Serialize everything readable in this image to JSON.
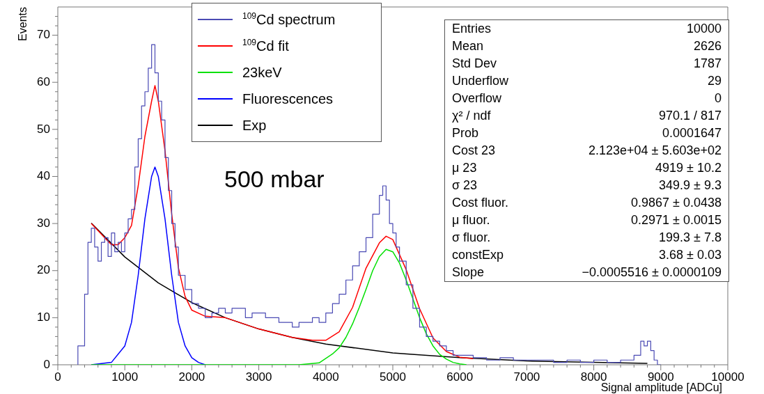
{
  "chart_data": {
    "type": "line",
    "xlabel": "Signal amplitude [ADCu]",
    "ylabel": "Events",
    "xlim": [
      0,
      10000
    ],
    "xticks": [
      0,
      {
        "value": 200,
        "label": null
      },
      {
        "value": 400,
        "label": null
      },
      {
        "value": 600,
        "label": null
      },
      {
        "value": 800,
        "label": null
      },
      1000,
      {
        "value": 1200,
        "label": null
      },
      {
        "value": 1400,
        "label": null
      },
      {
        "value": 1600,
        "label": null
      },
      {
        "value": 1800,
        "label": null
      },
      2000,
      {
        "value": 2200,
        "label": null
      },
      {
        "value": 2400,
        "label": null
      },
      {
        "value": 2600,
        "label": null
      },
      {
        "value": 2800,
        "label": null
      },
      3000,
      {
        "value": 3200,
        "label": null
      },
      {
        "value": 3400,
        "label": null
      },
      {
        "value": 3600,
        "label": null
      },
      {
        "value": 3800,
        "label": null
      },
      4000,
      {
        "value": 4200,
        "label": null
      },
      {
        "value": 4400,
        "label": null
      },
      {
        "value": 4600,
        "label": null
      },
      {
        "value": 4800,
        "label": null
      },
      5000,
      {
        "value": 5200,
        "label": null
      },
      {
        "value": 5400,
        "label": null
      },
      {
        "value": 5600,
        "label": null
      },
      {
        "value": 5800,
        "label": null
      },
      6000,
      {
        "value": 6200,
        "label": null
      },
      {
        "value": 6400,
        "label": null
      },
      {
        "value": 6600,
        "label": null
      },
      {
        "value": 6800,
        "label": null
      },
      7000,
      {
        "value": 7200,
        "label": null
      },
      {
        "value": 7400,
        "label": null
      },
      {
        "value": 7600,
        "label": null
      },
      {
        "value": 7800,
        "label": null
      },
      8000,
      {
        "value": 8200,
        "label": null
      },
      {
        "value": 8400,
        "label": null
      },
      {
        "value": 8600,
        "label": null
      },
      {
        "value": 8800,
        "label": null
      },
      9000,
      {
        "value": 9200,
        "label": null
      },
      {
        "value": 9400,
        "label": null
      },
      {
        "value": 9600,
        "label": null
      },
      {
        "value": 9800,
        "label": null
      },
      10000
    ],
    "ylim": [
      0,
      76
    ],
    "yticks": [
      0,
      {
        "value": 2,
        "label": null
      },
      {
        "value": 4,
        "label": null
      },
      {
        "value": 6,
        "label": null
      },
      {
        "value": 8,
        "label": null
      },
      10,
      {
        "value": 12,
        "label": null
      },
      {
        "value": 14,
        "label": null
      },
      {
        "value": 16,
        "label": null
      },
      {
        "value": 18,
        "label": null
      },
      20,
      {
        "value": 22,
        "label": null
      },
      {
        "value": 24,
        "label": null
      },
      {
        "value": 26,
        "label": null
      },
      {
        "value": 28,
        "label": null
      },
      30,
      {
        "value": 32,
        "label": null
      },
      {
        "value": 34,
        "label": null
      },
      {
        "value": 36,
        "label": null
      },
      {
        "value": 38,
        "label": null
      },
      40,
      {
        "value": 42,
        "label": null
      },
      {
        "value": 44,
        "label": null
      },
      {
        "value": 46,
        "label": null
      },
      {
        "value": 48,
        "label": null
      },
      50,
      {
        "value": 52,
        "label": null
      },
      {
        "value": 54,
        "label": null
      },
      {
        "value": 56,
        "label": null
      },
      {
        "value": 58,
        "label": null
      },
      60,
      {
        "value": 62,
        "label": null
      },
      {
        "value": 64,
        "label": null
      },
      {
        "value": 66,
        "label": null
      },
      {
        "value": 68,
        "label": null
      },
      70,
      {
        "value": 72,
        "label": null
      },
      {
        "value": 74,
        "label": null
      }
    ],
    "legend": "top left",
    "marker": "none",
    "series": [
      {
        "name": "$^{109}$Cd spectrum",
        "type": "step",
        "color": "#4a4ab4",
        "x": [
          300,
          400,
          450,
          500,
          550,
          600,
          650,
          700,
          750,
          800,
          850,
          900,
          950,
          1000,
          1050,
          1100,
          1150,
          1200,
          1250,
          1300,
          1350,
          1400,
          1450,
          1500,
          1550,
          1600,
          1650,
          1700,
          1750,
          1800,
          1900,
          2000,
          2100,
          2200,
          2300,
          2400,
          2500,
          2600,
          2700,
          2800,
          2900,
          3000,
          3100,
          3200,
          3300,
          3400,
          3500,
          3600,
          3700,
          3800,
          3900,
          4000,
          4100,
          4200,
          4300,
          4400,
          4500,
          4600,
          4700,
          4800,
          4850,
          4900,
          4950,
          5000,
          5050,
          5100,
          5200,
          5300,
          5400,
          5500,
          5600,
          5700,
          5800,
          5900,
          6000,
          6200,
          6400,
          6600,
          6800,
          7000,
          7200,
          7400,
          7600,
          7800,
          8000,
          8200,
          8400,
          8600,
          8700,
          8750,
          8800,
          8850,
          8900,
          8950,
          9000
        ],
        "values": [
          0,
          4,
          15,
          26,
          29,
          25,
          22,
          26,
          27,
          23,
          28,
          24,
          26,
          24,
          28,
          31,
          33,
          42,
          48,
          55,
          58,
          63,
          68,
          62,
          56,
          52,
          44,
          37,
          30,
          25,
          19,
          16,
          13,
          12,
          10,
          11,
          12,
          11,
          12,
          12,
          10,
          11,
          11,
          10,
          10,
          9,
          9,
          8,
          9,
          9,
          10,
          9,
          11,
          13,
          15,
          18,
          21,
          24,
          27,
          32,
          36,
          38,
          35,
          30,
          28,
          25,
          22,
          17,
          12,
          8,
          6,
          5,
          4,
          3,
          2,
          2,
          1.5,
          1,
          1.5,
          1,
          1,
          1,
          0.5,
          1,
          0.5,
          1,
          0.5,
          1,
          2,
          5,
          4,
          5,
          3,
          1,
          0
        ]
      },
      {
        "name": "$^{109}$Cd fit",
        "type": "line",
        "color": "#ff0000",
        "x": [
          500,
          600,
          700,
          800,
          900,
          1000,
          1100,
          1200,
          1300,
          1400,
          1450,
          1500,
          1600,
          1700,
          1800,
          1900,
          2000,
          2200,
          2500,
          3000,
          3500,
          3800,
          4000,
          4200,
          4400,
          4600,
          4800,
          4900,
          5000,
          5200,
          5400,
          5600,
          5800,
          6000,
          6200
        ],
        "values": [
          30,
          28.5,
          27,
          25.5,
          25.5,
          27,
          29.6,
          38,
          48.5,
          56,
          59.3,
          56,
          45.5,
          32,
          20.6,
          14.5,
          11.6,
          10.3,
          10,
          7.6,
          5.8,
          5.2,
          5.2,
          7,
          12.2,
          20.5,
          25.9,
          27.3,
          26.6,
          20.2,
          11.9,
          5.7,
          2.8,
          1.6,
          1.3
        ]
      },
      {
        "name": "23keV",
        "type": "line",
        "color": "#00e000",
        "x": [
          500,
          3600,
          3900,
          4100,
          4200,
          4300,
          4400,
          4500,
          4600,
          4700,
          4800,
          4900,
          5000,
          5100,
          5200,
          5300,
          5400,
          5500,
          5600,
          5700,
          5800,
          5900,
          6000,
          6100
        ],
        "values": [
          0,
          0,
          0.4,
          2.3,
          3.6,
          5.8,
          8.7,
          12.2,
          16,
          20,
          23,
          24.5,
          24,
          21.6,
          18,
          14,
          10,
          6.6,
          4,
          2.2,
          1.2,
          0.5,
          0.2,
          0
        ]
      },
      {
        "name": "Fluorescences",
        "type": "line",
        "color": "#0000ff",
        "x": [
          500,
          800,
          1000,
          1100,
          1200,
          1300,
          1400,
          1450,
          1500,
          1600,
          1700,
          1800,
          1900,
          2000,
          2100,
          2200
        ],
        "values": [
          0,
          0.5,
          4,
          9,
          19,
          31,
          40,
          42,
          40,
          31,
          19,
          9,
          4,
          1.5,
          0.5,
          0
        ]
      },
      {
        "name": "Exp",
        "type": "line",
        "color": "#000000",
        "x": [
          500,
          1000,
          1500,
          2000,
          2500,
          3000,
          3500,
          4000,
          5000,
          6000,
          7000,
          8000,
          8800
        ],
        "values": [
          30.1,
          22.9,
          17.4,
          13.2,
          10,
          7.6,
          5.8,
          4.4,
          2.5,
          1.5,
          0.8,
          0.5,
          0.3
        ]
      }
    ],
    "annotations": [
      "500 mbar",
      "Entries\t10000",
      "Mean\t2626",
      "Std Dev\t1787",
      "Underflow\t29",
      "Overflow\t0",
      "χ² / ndf\t970.1 / 817",
      "Prob\t0.0001647",
      "Cost 23\t2.123e+04 ± 5.603e+02",
      "μ 23\t4919 ± 10.2",
      "σ 23\t349.9 ± 9.3",
      "Cost fluor.\t0.9867 ± 0.0438",
      "μ fluor.\t0.2971 ± 0.0015",
      "σ fluor.\t199.3 ± 7.8",
      "constExp\t3.68 ± 0.03",
      "Slope\t−0.0005516 ± 0.0000109"
    ]
  }
}
